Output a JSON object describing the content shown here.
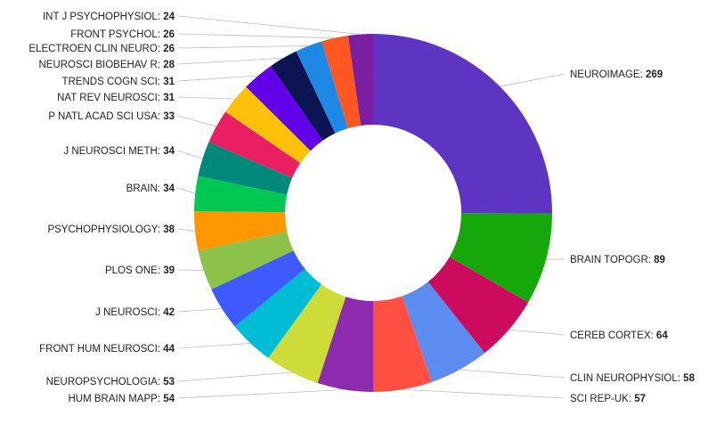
{
  "chart_data": {
    "type": "pie",
    "title": "",
    "slices": [
      {
        "label": "NEUROIMAGE",
        "value": 269,
        "color": "#5e35c2",
        "side": "right"
      },
      {
        "label": "BRAIN TOPOGR",
        "value": 89,
        "color": "#16a80a",
        "side": "right"
      },
      {
        "label": "CEREB CORTEX",
        "value": 64,
        "color": "#cc0b5e",
        "side": "right"
      },
      {
        "label": "CLIN NEUROPHYSIOL",
        "value": 58,
        "color": "#5c8cf0",
        "side": "right"
      },
      {
        "label": "SCI REP-UK",
        "value": 57,
        "color": "#ff5043",
        "side": "right"
      },
      {
        "label": "HUM BRAIN MAPP",
        "value": 54,
        "color": "#8e2aae",
        "side": "left"
      },
      {
        "label": "NEUROPSYCHOLOGIA",
        "value": 53,
        "color": "#cddc39",
        "side": "left"
      },
      {
        "label": "FRONT HUM NEUROSCI",
        "value": 44,
        "color": "#00bcd4",
        "side": "left"
      },
      {
        "label": "J NEUROSCI",
        "value": 42,
        "color": "#3d5afe",
        "side": "left"
      },
      {
        "label": "PLOS ONE",
        "value": 39,
        "color": "#8bc34a",
        "side": "left"
      },
      {
        "label": "PSYCHOPHYSIOLOGY",
        "value": 38,
        "color": "#ff9800",
        "side": "left"
      },
      {
        "label": "BRAIN",
        "value": 34,
        "color": "#00c853",
        "side": "left"
      },
      {
        "label": "J NEUROSCI METH",
        "value": 34,
        "color": "#00897b",
        "side": "left"
      },
      {
        "label": "P NATL ACAD SCI USA",
        "value": 33,
        "color": "#e91e63",
        "side": "left"
      },
      {
        "label": "NAT REV NEUROSCI",
        "value": 31,
        "color": "#ffc107",
        "side": "left"
      },
      {
        "label": "TRENDS COGN SCI",
        "value": 31,
        "color": "#6200ea",
        "side": "left"
      },
      {
        "label": "NEUROSCI BIOBEHAV R",
        "value": 28,
        "color": "#0d1452",
        "side": "left"
      },
      {
        "label": "ELECTROEN CLIN NEURO",
        "value": 26,
        "color": "#1e88e5",
        "side": "left"
      },
      {
        "label": "FRONT PSYCHOL",
        "value": 26,
        "color": "#ff5722",
        "side": "left"
      },
      {
        "label": "INT J PSYCHOPHYSIOL",
        "value": 24,
        "color": "#7b1fa2",
        "side": "left"
      }
    ]
  }
}
